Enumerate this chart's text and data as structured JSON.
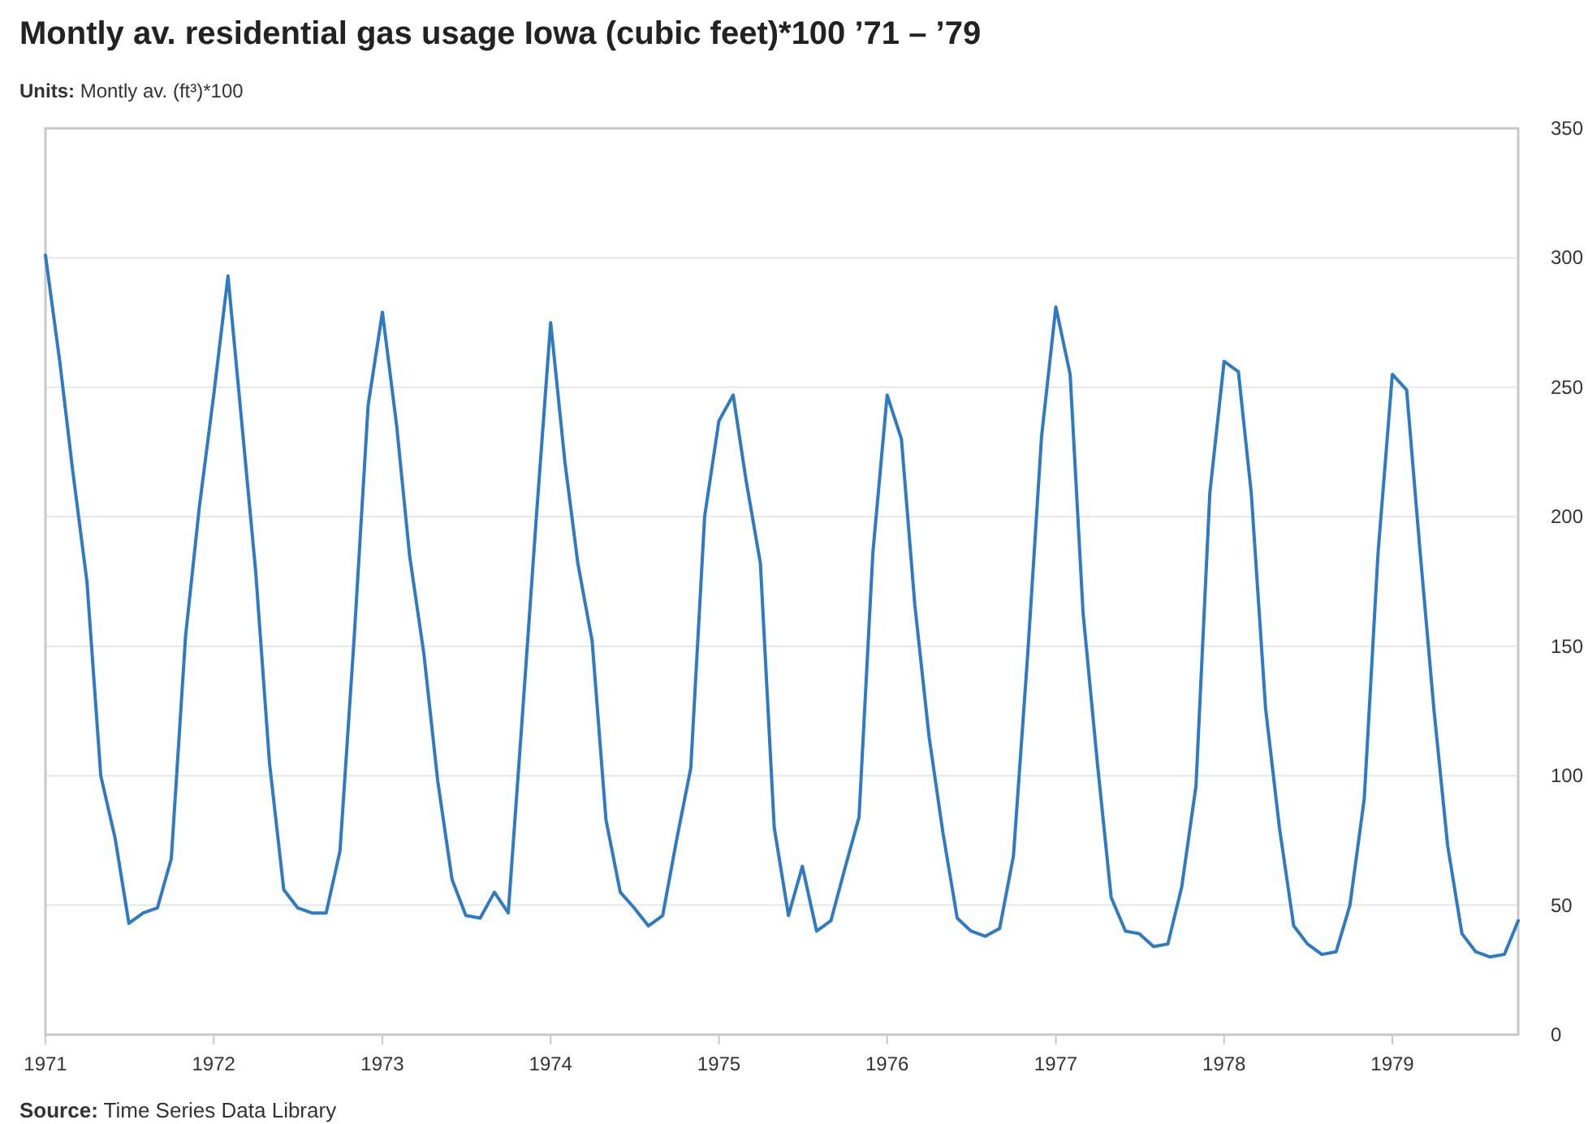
{
  "chart_data": {
    "type": "line",
    "title": "Montly av. residential gas usage Iowa (cubic feet)*100 ’71 – ’79",
    "subtitle": "Units: Montly av. (ft³)*100",
    "annotations": [
      "Source: Time Series Data Library"
    ],
    "x": [
      "1971-01",
      "1971-02",
      "1971-03",
      "1971-04",
      "1971-05",
      "1971-06",
      "1971-07",
      "1971-08",
      "1971-09",
      "1971-10",
      "1971-11",
      "1971-12",
      "1972-01",
      "1972-02",
      "1972-03",
      "1972-04",
      "1972-05",
      "1972-06",
      "1972-07",
      "1972-08",
      "1972-09",
      "1972-10",
      "1972-11",
      "1972-12",
      "1973-01",
      "1973-02",
      "1973-03",
      "1973-04",
      "1973-05",
      "1973-06",
      "1973-07",
      "1973-08",
      "1973-09",
      "1973-10",
      "1973-11",
      "1973-12",
      "1974-01",
      "1974-02",
      "1974-03",
      "1974-04",
      "1974-05",
      "1974-06",
      "1974-07",
      "1974-08",
      "1974-09",
      "1974-10",
      "1974-11",
      "1974-12",
      "1975-01",
      "1975-02",
      "1975-03",
      "1975-04",
      "1975-05",
      "1975-06",
      "1975-07",
      "1975-08",
      "1975-09",
      "1975-10",
      "1975-11",
      "1975-12",
      "1976-01",
      "1976-02",
      "1976-03",
      "1976-04",
      "1976-05",
      "1976-06",
      "1976-07",
      "1976-08",
      "1976-09",
      "1976-10",
      "1976-11",
      "1976-12",
      "1977-01",
      "1977-02",
      "1977-03",
      "1977-04",
      "1977-05",
      "1977-06",
      "1977-07",
      "1977-08",
      "1977-09",
      "1977-10",
      "1977-11",
      "1977-12",
      "1978-01",
      "1978-02",
      "1978-03",
      "1978-04",
      "1978-05",
      "1978-06",
      "1978-07",
      "1978-08",
      "1978-09",
      "1978-10",
      "1978-11",
      "1978-12",
      "1979-01",
      "1979-02",
      "1979-03",
      "1979-04",
      "1979-05",
      "1979-06",
      "1979-07",
      "1979-08",
      "1979-09",
      "1979-10"
    ],
    "series": [
      {
        "color": "#2f7ac0",
        "values": [
          301,
          260,
          218,
          175,
          100,
          76,
          43,
          47,
          49,
          68,
          154,
          204,
          247,
          293,
          238,
          179,
          105,
          56,
          49,
          47,
          47,
          71,
          154,
          243,
          279,
          235,
          185,
          147,
          98,
          60,
          46,
          45,
          55,
          47,
          124,
          200,
          275,
          221,
          182,
          152,
          83,
          55,
          49,
          42,
          46,
          75,
          103,
          200,
          237,
          247,
          214,
          182,
          80,
          46,
          65,
          40,
          44,
          64,
          84,
          186,
          247,
          230,
          166,
          115,
          78,
          45,
          40,
          38,
          41,
          69,
          147,
          231,
          281,
          255,
          163,
          105,
          53,
          40,
          39,
          34,
          35,
          57,
          96,
          209,
          260,
          256,
          209,
          126,
          80,
          42,
          35,
          31,
          32,
          50,
          91,
          186,
          255,
          249,
          189,
          126,
          73,
          39,
          32,
          30,
          31,
          44
        ]
      }
    ],
    "xlim": [
      "1971-01",
      "1979-10"
    ],
    "xticks": [
      "1971",
      "1972",
      "1973",
      "1974",
      "1975",
      "1976",
      "1977",
      "1978",
      "1979"
    ],
    "ylim": [
      0,
      350
    ],
    "yticks": [
      0,
      50,
      100,
      150,
      200,
      250,
      300,
      350
    ],
    "grid": "y",
    "marker": "none",
    "line_style": "solid"
  }
}
